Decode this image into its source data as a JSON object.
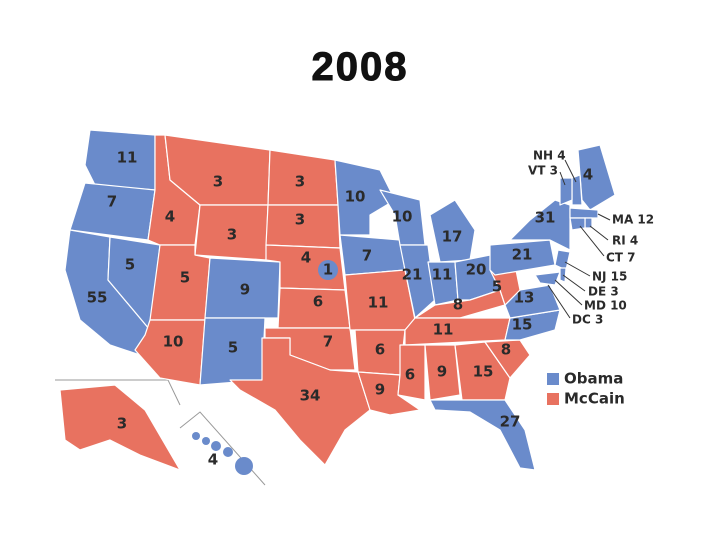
{
  "title": "2008",
  "states": [
    {
      "votes": 11,
      "color": "#6a8bcb"
    },
    {
      "votes": 7,
      "color": "#6a8bcb"
    },
    {
      "votes": 55,
      "color": "#6a8bcb"
    },
    {
      "votes": 5,
      "color": "#6a8bcb"
    },
    {
      "votes": 4,
      "color": "#e87260"
    },
    {
      "votes": 3,
      "color": "#e87260"
    },
    {
      "votes": 3,
      "color": "#e87260"
    },
    {
      "votes": 5,
      "color": "#e87260"
    },
    {
      "votes": 9,
      "color": "#6a8bcb"
    },
    {
      "votes": 10,
      "color": "#e87260"
    },
    {
      "votes": 5,
      "color": "#6a8bcb"
    },
    {
      "votes": 3,
      "color": "#e87260"
    },
    {
      "votes": 3,
      "color": "#e87260"
    },
    {
      "votes": 4,
      "color": "#e87260"
    },
    {
      "votes": 1,
      "color": "#6a8bcb"
    },
    {
      "votes": 6,
      "color": "#e87260"
    },
    {
      "votes": 7,
      "color": "#e87260"
    },
    {
      "votes": 34,
      "color": "#e87260"
    },
    {
      "votes": 10,
      "color": "#6a8bcb"
    },
    {
      "votes": 7,
      "color": "#6a8bcb"
    },
    {
      "votes": 11,
      "color": "#e87260"
    },
    {
      "votes": 6,
      "color": "#e87260"
    },
    {
      "votes": 9,
      "color": "#e87260"
    },
    {
      "votes": 10,
      "color": "#6a8bcb"
    },
    {
      "votes": 21,
      "color": "#6a8bcb"
    },
    {
      "votes": 17,
      "color": "#6a8bcb"
    },
    {
      "votes": 11,
      "color": "#6a8bcb"
    },
    {
      "votes": 20,
      "color": "#6a8bcb"
    },
    {
      "votes": 8,
      "color": "#e87260"
    },
    {
      "votes": 11,
      "color": "#e87260"
    },
    {
      "votes": 6,
      "color": "#e87260"
    },
    {
      "votes": 9,
      "color": "#e87260"
    },
    {
      "votes": 15,
      "color": "#e87260"
    },
    {
      "votes": 27,
      "color": "#6a8bcb"
    },
    {
      "votes": 8,
      "color": "#e87260"
    },
    {
      "votes": 15,
      "color": "#6a8bcb"
    },
    {
      "votes": 13,
      "color": "#6a8bcb"
    },
    {
      "votes": 5,
      "color": "#e87260"
    },
    {
      "votes": 21,
      "color": "#6a8bcb"
    },
    {
      "votes": 31,
      "color": "#6a8bcb"
    },
    {
      "votes": 4,
      "color": "#6a8bcb"
    },
    {
      "votes": 3,
      "color": "#e87260"
    },
    {
      "votes": 4,
      "color": "#6a8bcb"
    }
  ],
  "small_states": [
    {
      "label": "NH 4",
      "color": "#6a8bcb"
    },
    {
      "label": "VT 3",
      "color": "#6a8bcb"
    },
    {
      "label": "MA 12",
      "color": "#6a8bcb"
    },
    {
      "label": "RI 4",
      "color": "#6a8bcb"
    },
    {
      "label": "CT 7",
      "color": "#6a8bcb"
    },
    {
      "label": "NJ 15",
      "color": "#6a8bcb"
    },
    {
      "label": "DE 3",
      "color": "#6a8bcb"
    },
    {
      "label": "MD 10",
      "color": "#6a8bcb"
    },
    {
      "label": "DC 3",
      "color": "#6a8bcb"
    }
  ],
  "legend": [
    {
      "label": "Obama",
      "color": "#6a8bcb"
    },
    {
      "label": "McCain",
      "color": "#e87260"
    }
  ]
}
